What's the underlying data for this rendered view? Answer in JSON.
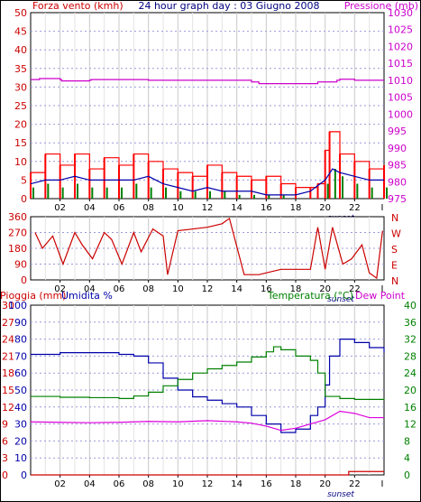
{
  "chart_data": [
    {
      "type": "line",
      "title": "24 hour graph day : 03 Giugno 2008",
      "ylabel_left": "Forza vento (kmh)",
      "ylabel_right": "Pressione (mb)",
      "ylim_left": [
        0,
        50
      ],
      "ylim_right": [
        975,
        1030
      ],
      "left_ticks": [
        "0",
        "5",
        "10",
        "15",
        "20",
        "25",
        "30",
        "35",
        "40",
        "45",
        "50"
      ],
      "right_ticks": [
        "975",
        "980",
        "985",
        "990",
        "995",
        "1000",
        "1005",
        "1010",
        "1015",
        "1020",
        "1025",
        "1030"
      ],
      "x_ticks": [
        "02",
        "04",
        "06",
        "08",
        "10",
        "12",
        "14",
        "16",
        "18",
        "20",
        "22"
      ],
      "x_last_tick": "I",
      "annotation": "sunset",
      "grid": true,
      "colors": {
        "wind_gust": "#ff0000",
        "wind_avg": "#008000",
        "wind_avg2": "#0000aa",
        "pressure": "#cc00cc",
        "title": "#000080"
      },
      "series": [
        {
          "name": "Pressione (mb)",
          "color": "#cc00cc",
          "x": [
            0,
            0.6,
            2.0,
            2.1,
            4.0,
            4.1,
            8.0,
            10.0,
            12.5,
            15.0,
            15.5,
            19.4,
            19.5,
            20.8,
            21.0,
            22.0,
            24.0
          ],
          "y": [
            1010.2,
            1010.5,
            1010.2,
            1009.8,
            1010.0,
            1010.2,
            1010.0,
            1010.0,
            1010.0,
            1009.5,
            1009.0,
            1009.0,
            1009.5,
            1010.0,
            1010.3,
            1010.0,
            1010.0
          ]
        },
        {
          "name": "Raffica",
          "color": "#ff0000",
          "x": [
            0,
            1,
            2,
            3,
            4,
            5,
            6,
            7,
            8,
            9,
            10,
            11,
            12,
            13,
            14,
            15,
            16,
            17,
            18,
            19,
            19.5,
            20,
            20.3,
            21,
            22,
            23,
            24
          ],
          "y": [
            7,
            12,
            9,
            12,
            8,
            11,
            9,
            12,
            10,
            8,
            7,
            6,
            9,
            7,
            6,
            5,
            6,
            4,
            3,
            3,
            4,
            13,
            18,
            12,
            10,
            8,
            9
          ]
        },
        {
          "name": "Media",
          "color": "#008000",
          "x": [
            0,
            1,
            2,
            3,
            4,
            5,
            6,
            7,
            8,
            9,
            10,
            11,
            12,
            13,
            14,
            15,
            16,
            17,
            18,
            19,
            20,
            20.5,
            21,
            22,
            23,
            24
          ],
          "y": [
            3,
            4,
            3,
            4,
            3,
            3,
            3,
            4,
            3,
            3,
            2,
            2,
            2,
            2,
            1,
            1,
            1,
            1,
            0,
            0,
            4,
            8,
            6,
            4,
            3,
            3
          ]
        },
        {
          "name": "Vento",
          "color": "#0000aa",
          "x": [
            0,
            1,
            2,
            3,
            4,
            5,
            6,
            7,
            8,
            9,
            10,
            11,
            12,
            13,
            14,
            15,
            16,
            17,
            18,
            19,
            20,
            20.5,
            21,
            22,
            23,
            24
          ],
          "y": [
            4,
            5,
            5,
            6,
            5,
            5,
            5,
            5,
            6,
            4,
            3,
            2,
            3,
            2,
            2,
            2,
            1,
            1,
            1,
            2,
            5,
            8,
            7,
            6,
            5,
            5
          ]
        }
      ]
    },
    {
      "type": "scatter",
      "ylabel_left_ticks": [
        "0",
        "90",
        "180",
        "270",
        "360"
      ],
      "right_labels": [
        "N",
        "W",
        "S",
        "E",
        "N"
      ],
      "ylim": [
        0,
        360
      ],
      "x_ticks": [
        "02",
        "04",
        "06",
        "08",
        "10",
        "12",
        "14",
        "16",
        "18",
        "20",
        "22"
      ],
      "x_last_tick": "I",
      "annotation": "sunset",
      "series": [
        {
          "name": "Direzione vento",
          "color": "#cc0000",
          "x": [
            0.3,
            0.8,
            1.5,
            2.2,
            3.0,
            3.5,
            4.2,
            5.0,
            5.5,
            6.2,
            7.0,
            7.5,
            8.3,
            9.0,
            9.3,
            10.0,
            12.0,
            13.0,
            13.5,
            14.5,
            15.5,
            17.0,
            18.0,
            19.0,
            19.5,
            20.0,
            20.5,
            21.2,
            21.8,
            22.5,
            23.0,
            23.5,
            23.9
          ],
          "y": [
            270,
            180,
            250,
            90,
            270,
            200,
            120,
            270,
            230,
            90,
            270,
            160,
            290,
            250,
            30,
            280,
            300,
            320,
            350,
            30,
            30,
            60,
            60,
            60,
            300,
            60,
            300,
            90,
            120,
            200,
            40,
            10,
            280
          ]
        }
      ]
    },
    {
      "type": "line",
      "ylabel_left": "Pioggia (mm)",
      "ylabel_left2": "Umidita %",
      "ylabel_right": "Temperatura (°C)",
      "ylabel_right2": "Dew Point",
      "ylim_rain": [
        0,
        30
      ],
      "ylim_humidity": [
        0,
        100
      ],
      "ylim_temp": [
        0,
        40
      ],
      "rain_ticks": [
        "0",
        "3",
        "6",
        "9",
        "12",
        "15",
        "18",
        "21",
        "24",
        "27",
        "30"
      ],
      "humidity_ticks": [
        "0",
        "10",
        "20",
        "30",
        "40",
        "50",
        "60",
        "70",
        "80",
        "90",
        "100"
      ],
      "temp_ticks_left": [
        "0",
        "4",
        "8",
        "12",
        "16",
        "20",
        "24",
        "28",
        "32",
        "36",
        "40"
      ],
      "temp_ticks_right": [
        "0",
        "4",
        "8",
        "12",
        "16",
        "20",
        "24",
        "28",
        "32",
        "36",
        "40"
      ],
      "x_ticks": [
        "02",
        "04",
        "06",
        "08",
        "10",
        "12",
        "14",
        "16",
        "18",
        "20",
        "22"
      ],
      "x_last_tick": "I",
      "annotation": "sunset",
      "series": [
        {
          "name": "Umidita %",
          "color": "#0000aa",
          "x": [
            0,
            2,
            4,
            6,
            7,
            8,
            9,
            10,
            11,
            12,
            13,
            14,
            15,
            16,
            17,
            18,
            19,
            19.5,
            20,
            20.3,
            21,
            22,
            23,
            24
          ],
          "y": [
            71,
            72,
            72,
            71,
            70,
            66,
            57,
            50,
            46,
            44,
            42,
            40,
            35,
            30,
            25,
            27,
            35,
            40,
            53,
            70,
            80,
            78,
            75,
            72
          ]
        },
        {
          "name": "Temperatura (°C)",
          "color": "#008000",
          "x": [
            0,
            2,
            4,
            6,
            7,
            8,
            9,
            10,
            11,
            12,
            13,
            14,
            15,
            16,
            16.5,
            17,
            18,
            19,
            19.5,
            20,
            21,
            22,
            24
          ],
          "y": [
            18.5,
            18.3,
            18.2,
            18.0,
            18.6,
            19.5,
            21.0,
            22.5,
            24.0,
            25.0,
            25.8,
            26.6,
            27.8,
            29.0,
            30.2,
            29.5,
            28.0,
            27.0,
            24.0,
            18.5,
            18.0,
            17.8,
            18.0
          ]
        },
        {
          "name": "Dew Point",
          "color": "#dd00dd",
          "x": [
            0,
            2,
            4,
            6,
            8,
            10,
            12,
            14,
            15,
            16,
            17,
            18,
            19,
            20,
            21,
            22,
            23,
            24
          ],
          "y": [
            12.5,
            12.4,
            12.3,
            12.4,
            12.6,
            12.5,
            12.8,
            12.5,
            12.2,
            11.5,
            10.5,
            11.0,
            12.0,
            13.0,
            15.0,
            14.5,
            13.5,
            13.5
          ]
        },
        {
          "name": "Pioggia (mm)",
          "color": "#cc0000",
          "x": [
            0,
            21.5,
            21.6,
            24
          ],
          "y": [
            0,
            0,
            0.6,
            0.6
          ]
        }
      ]
    }
  ]
}
